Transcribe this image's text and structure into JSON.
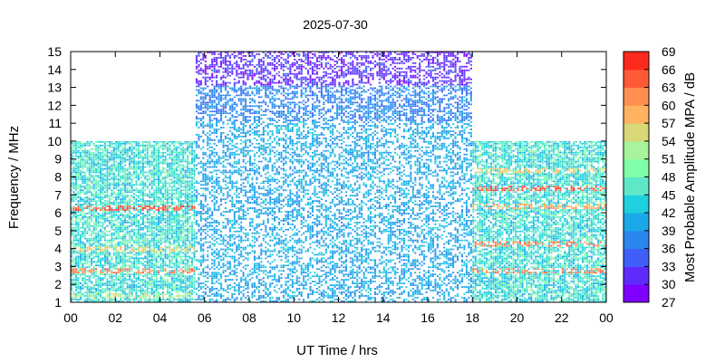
{
  "chart_data": {
    "type": "heatmap",
    "title": "2025-07-30",
    "xlabel": "UT Time / hrs",
    "ylabel": "Frequency / MHz",
    "xlim": [
      0,
      24
    ],
    "ylim": [
      1,
      15
    ],
    "x_tick_labels": [
      "00",
      "02",
      "04",
      "06",
      "08",
      "10",
      "12",
      "14",
      "16",
      "18",
      "20",
      "22",
      "00"
    ],
    "y_tick_labels": [
      "1",
      "2",
      "3",
      "4",
      "5",
      "6",
      "7",
      "8",
      "9",
      "10",
      "11",
      "12",
      "13",
      "14",
      "15"
    ],
    "colorbar": {
      "label": "Most Probable Amplitude MPA / dB",
      "range": [
        27,
        69
      ],
      "step": 3,
      "tick_labels": [
        "27",
        "30",
        "33",
        "36",
        "39",
        "42",
        "45",
        "48",
        "51",
        "54",
        "57",
        "60",
        "63",
        "66",
        "69"
      ],
      "colors": [
        "#7f00ff",
        "#5f2bfd",
        "#3f5ff8",
        "#2b86f0",
        "#1aa8e8",
        "#1fd0e0",
        "#5fe8c8",
        "#80ffa8",
        "#a8f39c",
        "#d8d878",
        "#ffb360",
        "#ff8f50",
        "#ff5a38",
        "#ff2a1e",
        "#ff0000"
      ]
    },
    "coverage": [
      {
        "time_range": [
          0,
          5.6
        ],
        "freq_range": [
          1,
          10
        ]
      },
      {
        "time_range": [
          5.6,
          18
        ],
        "freq_range": [
          1,
          15
        ]
      },
      {
        "time_range": [
          18,
          24
        ],
        "freq_range": [
          1,
          10
        ]
      }
    ],
    "typical_mpa_db": [
      {
        "time_range": [
          0,
          5.6
        ],
        "freq_range": [
          1,
          10
        ],
        "mpa_range": [
          39,
          48
        ],
        "bands": [
          {
            "freq": 6.2,
            "mpa": 66
          },
          {
            "freq": 2.7,
            "mpa": 63
          },
          {
            "freq": 3.9,
            "mpa": 57
          },
          {
            "freq": 1.3,
            "mpa": 54
          }
        ]
      },
      {
        "time_range": [
          5.6,
          18
        ],
        "freq_range": [
          1,
          11
        ],
        "mpa_range": [
          36,
          42
        ]
      },
      {
        "time_range": [
          5.6,
          18
        ],
        "freq_range": [
          11,
          13
        ],
        "mpa_range": [
          33,
          39
        ]
      },
      {
        "time_range": [
          5.6,
          18
        ],
        "freq_range": [
          13,
          15
        ],
        "mpa_range": [
          27,
          33
        ]
      },
      {
        "time_range": [
          18,
          24
        ],
        "freq_range": [
          1,
          10
        ],
        "mpa_range": [
          39,
          48
        ],
        "bands": [
          {
            "freq": 7.3,
            "mpa": 66
          },
          {
            "freq": 4.2,
            "mpa": 63
          },
          {
            "freq": 2.7,
            "mpa": 63
          },
          {
            "freq": 8.3,
            "mpa": 57
          },
          {
            "freq": 6.3,
            "mpa": 60
          }
        ]
      }
    ],
    "grid": false
  }
}
